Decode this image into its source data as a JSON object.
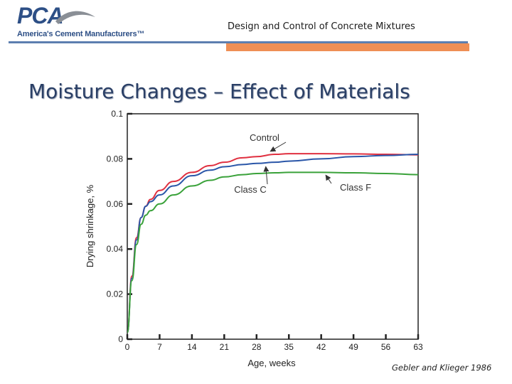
{
  "header": {
    "logo_text": "PCA",
    "logo_tagline": "America's Cement Manufacturers™",
    "presentation_title": "Design and Control of Concrete Mixtures"
  },
  "slide": {
    "title": "Moisture Changes – Effect of Materials",
    "citation": "Gebler and Klieger 1986"
  },
  "colors": {
    "brand_blue": "#2d4f86",
    "accent_orange": "#ef8f55",
    "control": "#e03040",
    "class_c": "#2a56a8",
    "class_f": "#3aa23a"
  },
  "chart_data": {
    "type": "line",
    "xlabel": "Age, weeks",
    "ylabel": "Drying shrinkage, %",
    "xlim": [
      0,
      63
    ],
    "ylim": [
      0,
      0.1
    ],
    "xticks": [
      0,
      7,
      14,
      21,
      28,
      35,
      42,
      49,
      56,
      63
    ],
    "yticks": [
      0,
      0.02,
      0.04,
      0.06,
      0.08,
      0.1
    ],
    "ytick_labels": [
      "0",
      "0.02",
      "0.04",
      "0.06",
      "0.08",
      "0.1"
    ],
    "grid": false,
    "series": [
      {
        "name": "Control",
        "color": "#e03040",
        "x": [
          0,
          1,
          2,
          3,
          4,
          5,
          7,
          10,
          14,
          18,
          21,
          25,
          28,
          32,
          35,
          40,
          42,
          49,
          56,
          63
        ],
        "y": [
          0.003,
          0.028,
          0.045,
          0.054,
          0.059,
          0.062,
          0.066,
          0.07,
          0.074,
          0.077,
          0.0785,
          0.0805,
          0.081,
          0.082,
          0.0823,
          0.0823,
          0.0823,
          0.0822,
          0.082,
          0.0818
        ]
      },
      {
        "name": "Class C",
        "color": "#2a56a8",
        "x": [
          0,
          1,
          2,
          3,
          4,
          5,
          7,
          10,
          14,
          18,
          21,
          25,
          28,
          32,
          35,
          42,
          49,
          56,
          63
        ],
        "y": [
          0.003,
          0.027,
          0.044,
          0.054,
          0.059,
          0.061,
          0.064,
          0.068,
          0.0725,
          0.075,
          0.0765,
          0.0775,
          0.078,
          0.0785,
          0.079,
          0.08,
          0.081,
          0.0815,
          0.082
        ]
      },
      {
        "name": "Class F",
        "color": "#3aa23a",
        "x": [
          0,
          1,
          2,
          3,
          4,
          5,
          7,
          10,
          14,
          18,
          21,
          25,
          28,
          32,
          35,
          42,
          49,
          56,
          63
        ],
        "y": [
          0.003,
          0.026,
          0.042,
          0.051,
          0.055,
          0.057,
          0.06,
          0.064,
          0.068,
          0.0705,
          0.072,
          0.073,
          0.0735,
          0.0738,
          0.074,
          0.074,
          0.0738,
          0.0735,
          0.073
        ]
      }
    ],
    "annotations": [
      {
        "text": "Control",
        "series": "Control",
        "x": 31,
        "y": 0.0824
      },
      {
        "text": "Class C",
        "series": "Class C",
        "x": 30,
        "y": 0.0775
      },
      {
        "text": "Class F",
        "series": "Class F",
        "x": 43,
        "y": 0.0737
      }
    ]
  }
}
